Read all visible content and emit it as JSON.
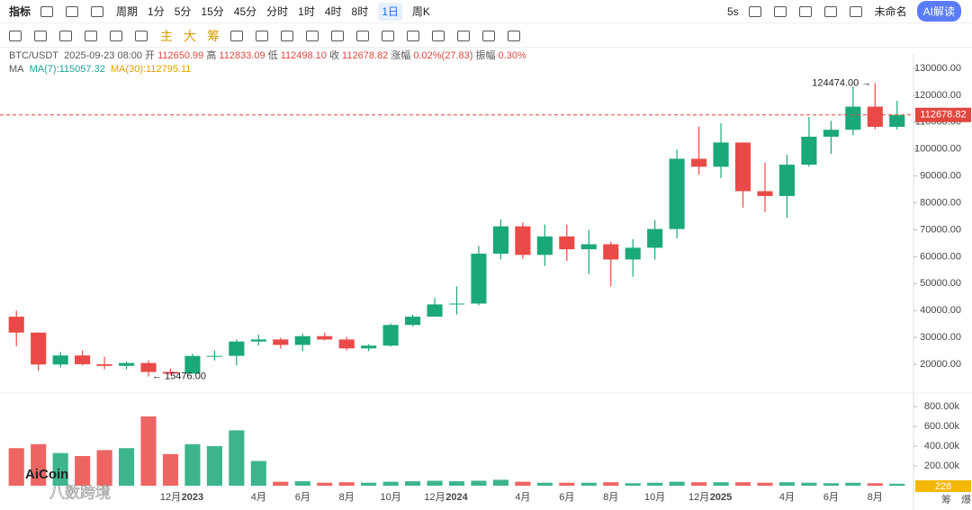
{
  "toolbar": {
    "indicator": "指标",
    "period": "周期",
    "intervals": [
      "1分",
      "5分",
      "15分",
      "45分",
      "分时",
      "1时",
      "4时",
      "8时",
      "1日",
      "周K"
    ],
    "active_interval": 8,
    "refresh": "5s",
    "layout_name": "未命名",
    "ai": "AI解读"
  },
  "drawbar": {
    "modes": [
      "主",
      "大",
      "筹"
    ]
  },
  "info": {
    "pair": "BTC/USDT",
    "time": "2025-09-23 08:00",
    "fields": [
      {
        "label": "开",
        "value": "112650.99"
      },
      {
        "label": "高",
        "value": "112833.09"
      },
      {
        "label": "低",
        "value": "112498.10"
      },
      {
        "label": "收",
        "value": "112678.82"
      },
      {
        "label": "涨幅",
        "value": "0.02%(27.83)"
      },
      {
        "label": "振幅",
        "value": "0.30%"
      }
    ],
    "ma_title": "MA",
    "ma7": "MA(7):115057.32",
    "ma30": "MA(30):112795.11"
  },
  "footer": {
    "volume_badge": "228",
    "buttons": [
      "筹",
      "爆"
    ],
    "watermark": "AiCoin",
    "source": "八数跨境"
  },
  "chart_data": {
    "type": "candlestick",
    "categories": [
      null,
      null,
      null,
      null,
      null,
      null,
      null,
      "12月",
      "2023",
      null,
      null,
      "4月",
      null,
      "6月",
      null,
      "8月",
      null,
      "10月",
      null,
      "12月",
      "2024",
      null,
      null,
      "4月",
      null,
      "6月",
      null,
      "8月",
      null,
      "10月",
      null,
      "12月",
      "2025",
      null,
      null,
      "4月",
      null,
      "6月",
      null,
      "8月",
      null
    ],
    "open": [
      37700,
      31800,
      19950,
      23300,
      20050,
      19430,
      20500,
      17170,
      16550,
      23130,
      23150,
      28480,
      29250,
      27220,
      30480,
      29230,
      25940,
      26960,
      34640,
      37720,
      42280,
      42580,
      61130,
      71280,
      60670,
      67530,
      62750,
      64620,
      58970,
      63330,
      70290,
      96400,
      93430,
      102430,
      84350,
      82550,
      94200,
      104600,
      107170,
      115760,
      108250
    ],
    "high": [
      40000,
      31900,
      24600,
      25200,
      22800,
      21100,
      21500,
      18400,
      23900,
      25250,
      29200,
      31000,
      29850,
      31400,
      31800,
      30200,
      27500,
      35200,
      38450,
      44700,
      48970,
      64000,
      73800,
      72800,
      71980,
      71950,
      70000,
      65600,
      66500,
      73600,
      99800,
      108350,
      109600,
      102500,
      95000,
      97900,
      111900,
      110500,
      123200,
      124474,
      117900
    ],
    "low": [
      26700,
      17600,
      18800,
      19600,
      18150,
      18200,
      15476,
      16300,
      16500,
      21400,
      19550,
      26950,
      25800,
      24800,
      28860,
      25150,
      24900,
      26550,
      34100,
      37600,
      38550,
      41900,
      59000,
      59200,
      56550,
      58400,
      53500,
      49000,
      52550,
      58900,
      66800,
      90500,
      89150,
      78250,
      76600,
      74400,
      93400,
      98200,
      105100,
      107350,
      107250
    ],
    "close": [
      31800,
      19950,
      23300,
      20050,
      19430,
      20500,
      17170,
      16550,
      23130,
      23150,
      28480,
      29250,
      27220,
      30480,
      29230,
      25940,
      26960,
      34640,
      37720,
      42280,
      42580,
      61130,
      71280,
      60670,
      67530,
      62750,
      64620,
      58970,
      63330,
      70290,
      96400,
      93430,
      102430,
      84350,
      82550,
      94200,
      104600,
      107170,
      115760,
      108250,
      112678.82
    ],
    "volume": [
      380000,
      420000,
      330000,
      300000,
      360000,
      380000,
      700000,
      320000,
      420000,
      400000,
      560000,
      250000,
      40000,
      45000,
      30000,
      35000,
      30000,
      40000,
      45000,
      50000,
      45000,
      50000,
      60000,
      40000,
      30000,
      30000,
      30000,
      35000,
      25000,
      30000,
      40000,
      35000,
      35000,
      35000,
      30000,
      35000,
      30000,
      25000,
      30000,
      25000,
      20000
    ],
    "up_color": "#1aa87a",
    "down_color": "#ea4a47",
    "ylim": [
      12000,
      134000
    ],
    "yticks": [
      {
        "value": 20000,
        "label": "20000.00"
      },
      {
        "value": 30000,
        "label": "30000.00"
      },
      {
        "value": 40000,
        "label": "40000.00"
      },
      {
        "value": 50000,
        "label": "50000.00"
      },
      {
        "value": 60000,
        "label": "60000.00"
      },
      {
        "value": 70000,
        "label": "70000.00"
      },
      {
        "value": 80000,
        "label": "80000.00"
      },
      {
        "value": 90000,
        "label": "90000.00"
      },
      {
        "value": 100000,
        "label": "100000.00"
      },
      {
        "value": 110000,
        "label": "110000.00"
      },
      {
        "value": 120000,
        "label": "120000.00"
      },
      {
        "value": 130000,
        "label": "130000.00"
      }
    ],
    "vol_ylim": [
      0,
      800000
    ],
    "vol_yticks": [
      {
        "value": 200000,
        "label": "200.00k"
      },
      {
        "value": 400000,
        "label": "400.00k"
      },
      {
        "value": 600000,
        "label": "600.00k"
      },
      {
        "value": 800000,
        "label": "800.00k"
      }
    ],
    "last_price": {
      "value": 112678.82,
      "label": "112678.82"
    },
    "high_mark": {
      "value": 124474,
      "label": "124474.00 →"
    },
    "low_mark": {
      "value": 15476,
      "label": "← 15476.00"
    }
  }
}
